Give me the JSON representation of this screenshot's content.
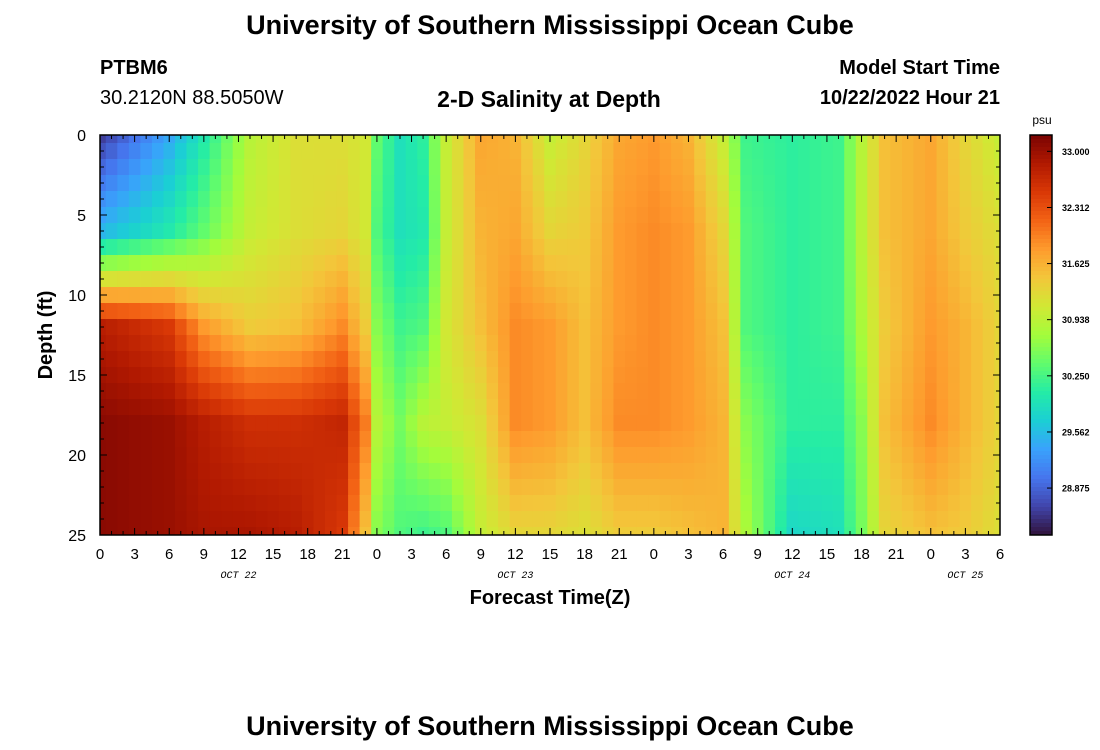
{
  "header": {
    "title": "University of Southern Mississippi Ocean Cube",
    "station_id": "PTBM6",
    "station_coords": "30.2120N  88.5050W",
    "chart_title": "2-D Salinity at Depth",
    "model_start_label": "Model Start Time",
    "model_start_value": "10/22/2022 Hour 21"
  },
  "footer": {
    "title": "University of Southern Mississippi Ocean Cube"
  },
  "colorbar": {
    "unit": "psu",
    "ticks": [
      "33.000",
      "32.312",
      "31.625",
      "30.938",
      "30.250",
      "29.562",
      "28.875"
    ]
  },
  "colors": {
    "colormap": [
      "#30123b",
      "#4145ab",
      "#4675ed",
      "#39a2fc",
      "#1bcfd4",
      "#24eca6",
      "#61fc6c",
      "#a4fc3b",
      "#d1e834",
      "#f3c63a",
      "#fe9b2d",
      "#f36315",
      "#d93806",
      "#b11901",
      "#7a0402"
    ]
  },
  "chart_data": {
    "type": "heatmap",
    "title": "2-D Salinity at Depth",
    "xlabel": "Forecast Time(Z)",
    "ylabel": "Depth (ft)",
    "value_unit": "psu",
    "value_range": [
      28.3,
      33.2
    ],
    "x_range_hours": [
      0,
      78
    ],
    "x_ticks": [
      "0",
      "3",
      "6",
      "9",
      "12",
      "15",
      "18",
      "21",
      "0",
      "3",
      "6",
      "9",
      "12",
      "15",
      "18",
      "21",
      "0",
      "3",
      "6",
      "9",
      "12",
      "15",
      "18",
      "21",
      "0",
      "3",
      "6"
    ],
    "day_labels": [
      {
        "label": "OCT 22",
        "hour": 12
      },
      {
        "label": "OCT 23",
        "hour": 36
      },
      {
        "label": "OCT 24",
        "hour": 60
      },
      {
        "label": "OCT 25",
        "hour": 75
      }
    ],
    "y_range": [
      0,
      25
    ],
    "y_ticks": [
      0,
      5,
      10,
      15,
      20,
      25
    ],
    "grid_resolution": {
      "time_hours": 1,
      "depth_levels": 26
    },
    "depth_profile_nodes": [
      0,
      6,
      12,
      18,
      25
    ],
    "salinity_nodes": [
      {
        "hour": 0,
        "values": [
          28.6,
          29.5,
          32.8,
          33.1,
          33.1
        ]
      },
      {
        "hour": 6,
        "values": [
          29.4,
          30.0,
          32.5,
          33.0,
          33.0
        ]
      },
      {
        "hour": 9,
        "values": [
          30.0,
          30.4,
          31.8,
          32.8,
          32.9
        ]
      },
      {
        "hour": 13,
        "values": [
          30.9,
          31.0,
          31.4,
          32.6,
          32.9
        ]
      },
      {
        "hour": 17,
        "values": [
          31.2,
          31.2,
          31.5,
          32.6,
          32.8
        ]
      },
      {
        "hour": 21,
        "values": [
          31.2,
          31.3,
          31.9,
          32.7,
          32.5
        ]
      },
      {
        "hour": 23,
        "values": [
          31.1,
          31.1,
          31.4,
          32.0,
          31.5
        ]
      },
      {
        "hour": 24,
        "values": [
          30.4,
          30.3,
          30.6,
          30.9,
          30.6
        ]
      },
      {
        "hour": 26,
        "values": [
          29.9,
          29.9,
          30.2,
          30.5,
          30.3
        ]
      },
      {
        "hour": 28,
        "values": [
          30.1,
          30.0,
          30.3,
          30.9,
          30.2
        ]
      },
      {
        "hour": 30,
        "values": [
          31.0,
          31.0,
          31.1,
          31.0,
          30.3
        ]
      },
      {
        "hour": 33,
        "values": [
          31.7,
          31.6,
          31.5,
          31.2,
          31.0
        ]
      },
      {
        "hour": 36,
        "values": [
          31.6,
          31.7,
          31.9,
          31.9,
          31.3
        ]
      },
      {
        "hour": 39,
        "values": [
          31.0,
          31.3,
          31.8,
          31.8,
          31.3
        ]
      },
      {
        "hour": 42,
        "values": [
          31.3,
          31.4,
          31.5,
          31.5,
          31.2
        ]
      },
      {
        "hour": 45,
        "values": [
          31.7,
          31.8,
          31.8,
          31.9,
          31.4
        ]
      },
      {
        "hour": 48,
        "values": [
          31.8,
          31.9,
          31.9,
          31.9,
          31.4
        ]
      },
      {
        "hour": 51,
        "values": [
          31.6,
          31.8,
          31.8,
          31.8,
          31.5
        ]
      },
      {
        "hour": 54,
        "values": [
          31.0,
          31.3,
          31.5,
          31.6,
          31.6
        ]
      },
      {
        "hour": 56,
        "values": [
          30.2,
          30.3,
          30.3,
          30.6,
          30.8
        ]
      },
      {
        "hour": 60,
        "values": [
          30.1,
          30.1,
          30.1,
          30.1,
          29.8
        ]
      },
      {
        "hour": 64,
        "values": [
          30.2,
          30.2,
          30.2,
          30.1,
          29.9
        ]
      },
      {
        "hour": 66,
        "values": [
          30.9,
          30.9,
          30.8,
          30.6,
          30.5
        ]
      },
      {
        "hour": 68,
        "values": [
          31.5,
          31.5,
          31.4,
          31.5,
          31.3
        ]
      },
      {
        "hour": 72,
        "values": [
          31.7,
          31.7,
          31.8,
          31.9,
          31.5
        ]
      },
      {
        "hour": 75,
        "values": [
          31.3,
          31.4,
          31.6,
          31.6,
          31.4
        ]
      },
      {
        "hour": 78,
        "values": [
          31.0,
          31.2,
          31.3,
          31.3,
          31.2
        ]
      }
    ]
  }
}
